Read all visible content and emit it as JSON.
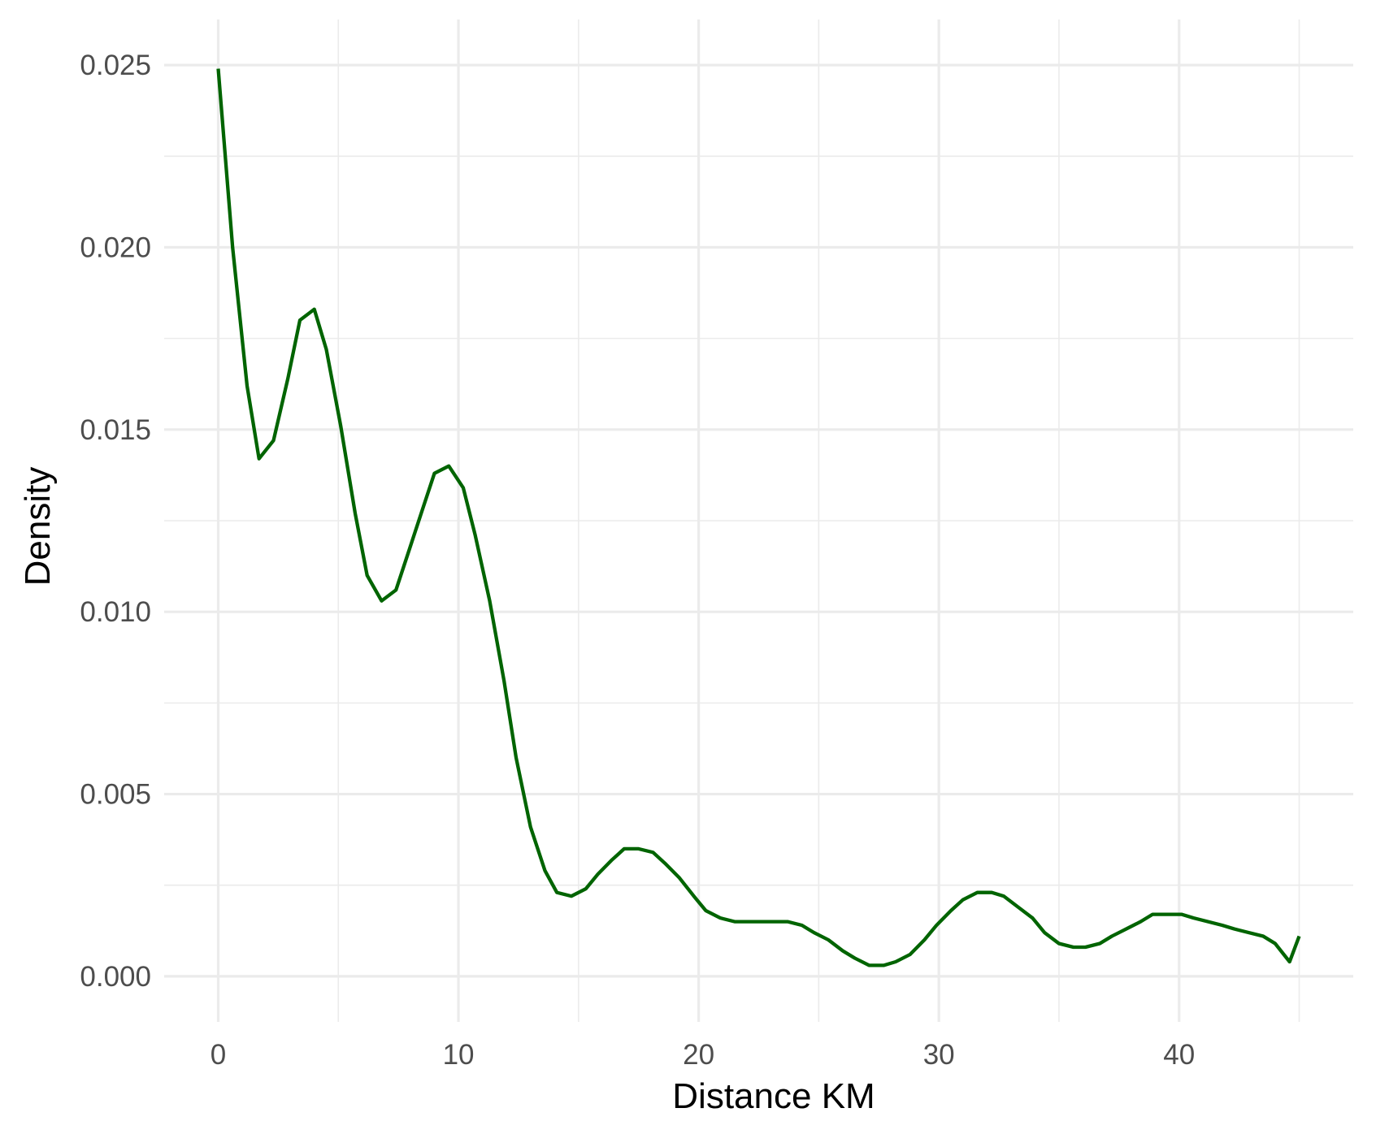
{
  "chart_data": {
    "type": "line",
    "title": "",
    "xlabel": "Distance KM",
    "ylabel": "Density",
    "xlim": [
      -2.25,
      47.25
    ],
    "ylim": [
      -0.00125,
      0.02625
    ],
    "x_ticks": [
      0,
      10,
      20,
      30,
      40
    ],
    "x_tick_labels": [
      "0",
      "10",
      "20",
      "30",
      "40"
    ],
    "y_ticks": [
      0,
      0.005,
      0.01,
      0.015,
      0.02,
      0.025
    ],
    "y_tick_labels": [
      "0.000",
      "0.005",
      "0.010",
      "0.015",
      "0.020",
      "0.025"
    ],
    "grid": true,
    "legend": "none",
    "line_color": "#006400",
    "series": [
      {
        "x": [
          0,
          0.6,
          1.2,
          1.7,
          2.3,
          2.9,
          3.4,
          4.0,
          4.5,
          5.1,
          5.7,
          6.2,
          6.8,
          7.4,
          7.9,
          8.5,
          9.0,
          9.6,
          10.2,
          10.7,
          11.3,
          11.9,
          12.4,
          13.0,
          13.6,
          14.1,
          14.7,
          15.3,
          15.8,
          16.4,
          16.9,
          17.5,
          18.1,
          18.6,
          19.2,
          19.8,
          20.3,
          20.9,
          21.5,
          22.0,
          22.6,
          23.1,
          23.7,
          24.3,
          24.8,
          25.4,
          26.0,
          26.5,
          27.1,
          27.7,
          28.2,
          28.8,
          29.4,
          29.9,
          30.5,
          31.0,
          31.6,
          32.2,
          32.7,
          33.3,
          33.9,
          34.4,
          35.0,
          35.6,
          36.1,
          36.7,
          37.2,
          37.8,
          38.4,
          38.9,
          39.5,
          40.1,
          40.6,
          41.2,
          41.8,
          42.3,
          42.9,
          43.5,
          44.0,
          44.6,
          45.0
        ],
        "y": [
          0.0249,
          0.02,
          0.0162,
          0.0142,
          0.0147,
          0.0164,
          0.018,
          0.0183,
          0.0172,
          0.0151,
          0.0127,
          0.011,
          0.0103,
          0.0106,
          0.0116,
          0.0128,
          0.0138,
          0.014,
          0.0134,
          0.0121,
          0.0103,
          0.0081,
          0.006,
          0.0041,
          0.0029,
          0.0023,
          0.0022,
          0.0024,
          0.0028,
          0.0032,
          0.0035,
          0.0035,
          0.0034,
          0.0031,
          0.0027,
          0.0022,
          0.0018,
          0.0016,
          0.0015,
          0.0015,
          0.0015,
          0.0015,
          0.0015,
          0.0014,
          0.0012,
          0.001,
          0.0007,
          0.0005,
          0.0003,
          0.0003,
          0.0004,
          0.0006,
          0.001,
          0.0014,
          0.0018,
          0.0021,
          0.0023,
          0.0023,
          0.0022,
          0.0019,
          0.0016,
          0.0012,
          0.0009,
          0.0008,
          0.0008,
          0.0009,
          0.0011,
          0.0013,
          0.0015,
          0.0017,
          0.0017,
          0.0017,
          0.0016,
          0.0015,
          0.0014,
          0.0013,
          0.0012,
          0.0011,
          0.0009,
          0.0004,
          0.0011
        ]
      }
    ]
  }
}
